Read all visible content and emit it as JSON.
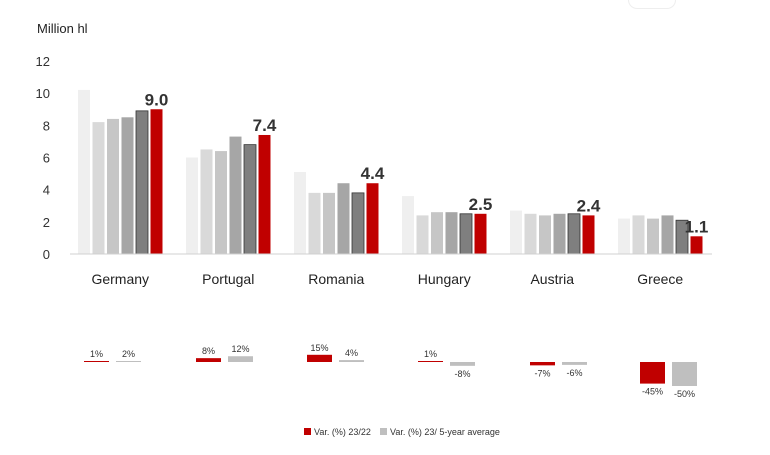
{
  "chart_data": {
    "type": "bar",
    "ylabel": "Million hl",
    "ylim": [
      0,
      12
    ],
    "yticks": [
      0,
      2,
      4,
      6,
      8,
      10,
      12
    ],
    "categories": [
      "Germany",
      "Portugal",
      "Romania",
      "Hungary",
      "Austria",
      "Greece"
    ],
    "series": [
      {
        "values": [
          10.2,
          6.0,
          5.1,
          3.6,
          2.7,
          2.2
        ],
        "color": "#efefef"
      },
      {
        "values": [
          8.2,
          6.5,
          3.8,
          2.4,
          2.5,
          2.4
        ],
        "color": "#d9d9d9"
      },
      {
        "values": [
          8.4,
          6.4,
          3.8,
          2.6,
          2.4,
          2.2
        ],
        "color": "#c6c6c6"
      },
      {
        "values": [
          8.5,
          7.3,
          4.4,
          2.6,
          2.5,
          2.4
        ],
        "color": "#a6a6a6"
      },
      {
        "values": [
          8.9,
          6.8,
          3.8,
          2.5,
          2.5,
          2.1
        ],
        "color": "#7f7f7f"
      },
      {
        "values": [
          9.0,
          7.4,
          4.4,
          2.5,
          2.4,
          1.1
        ],
        "color": "#c00000"
      }
    ],
    "data_labels": [
      "9.0",
      "7.4",
      "4.4",
      "2.5",
      "2.4",
      "1.1"
    ],
    "variation": {
      "var_23_22": [
        1,
        8,
        15,
        1,
        -7,
        -45
      ],
      "var_23_5y": [
        2,
        12,
        4,
        -8,
        -6,
        -50
      ],
      "labels_23_22": [
        "1%",
        "8%",
        "15%",
        "1%",
        "-7%",
        "-45%"
      ],
      "labels_23_5y": [
        "2%",
        "12%",
        "4%",
        "-8%",
        "-6%",
        "-50%"
      ]
    },
    "legend": [
      {
        "name": "Var. (%) 23/22",
        "color": "#c00000"
      },
      {
        "name": "Var. (%) 23/ 5-year average",
        "color": "#bfbfbf"
      }
    ],
    "legend_position": "bottom",
    "grid": false
  }
}
